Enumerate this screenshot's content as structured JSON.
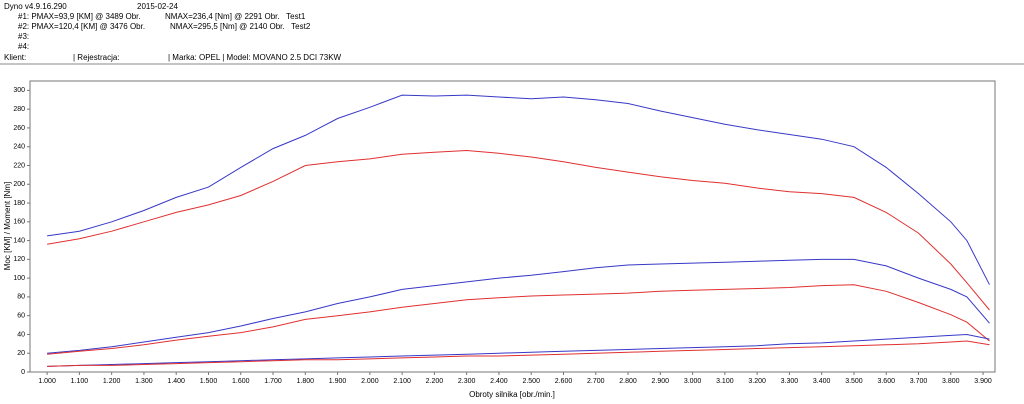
{
  "header": {
    "app": "Dyno v4.9.16.290",
    "date": "2015-02-24",
    "test1_power": "#1: PMAX=93,9 [KM] @ 3489 Obr.",
    "test1_torque": "NMAX=236,4 [Nm] @ 2291 Obr.   Test1",
    "test2_power": "#2: PMAX=120,4 [KM] @ 3476 Obr.",
    "test2_torque": "NMAX=295,5 [Nm] @ 2140 Obr.   Test2",
    "slot3": "#3:",
    "slot4": "#4:",
    "client": "Klient:",
    "registration": "| Rejestracja:",
    "vehicle": "| Marka: OPEL | Model: MOVANO 2.5 DCI 73KW"
  },
  "chart_data": {
    "type": "line",
    "x_label": "Obroty silnika [obr./min.]",
    "y_label": "Moc [KM] / Moment [Nm]",
    "x": [
      1000,
      1100,
      1200,
      1300,
      1400,
      1500,
      1600,
      1700,
      1800,
      1900,
      2000,
      2100,
      2200,
      2300,
      2400,
      2500,
      2600,
      2700,
      2800,
      2900,
      3000,
      3100,
      3200,
      3300,
      3400,
      3500,
      3600,
      3700,
      3800,
      3850,
      3920
    ],
    "series": [
      {
        "color": "#3838c8",
        "values": [
          145,
          150,
          160,
          172,
          186,
          197,
          218,
          238,
          252,
          270,
          282,
          295,
          294,
          295,
          293,
          291,
          293,
          290,
          286,
          278,
          271,
          264,
          258,
          253,
          248,
          240,
          218,
          190,
          160,
          140,
          93
        ]
      },
      {
        "color": "#e03030",
        "values": [
          136,
          142,
          150,
          160,
          170,
          178,
          188,
          203,
          220,
          224,
          227,
          232,
          234,
          236,
          233,
          229,
          224,
          218,
          213,
          208,
          204,
          201,
          196,
          192,
          190,
          186,
          170,
          148,
          115,
          95,
          66
        ]
      },
      {
        "color": "#3838c8",
        "values": [
          20,
          23,
          27,
          32,
          37,
          42,
          49,
          57,
          64,
          73,
          80,
          88,
          92,
          96,
          100,
          103,
          107,
          111,
          114,
          115,
          116,
          117,
          118,
          119,
          120,
          120,
          113,
          100,
          88,
          80,
          52
        ]
      },
      {
        "color": "#e03030",
        "values": [
          19,
          22,
          25,
          29,
          34,
          38,
          42,
          48,
          56,
          60,
          64,
          69,
          73,
          77,
          79,
          81,
          82,
          83,
          84,
          86,
          87,
          88,
          89,
          90,
          92,
          93,
          86,
          74,
          61,
          53,
          33
        ]
      },
      {
        "color": "#3838c8",
        "values": [
          6,
          7,
          8,
          9,
          10,
          11,
          12,
          13,
          14,
          15,
          16,
          17,
          18,
          19,
          20,
          21,
          22,
          23,
          24,
          25,
          26,
          27,
          28,
          30,
          31,
          33,
          35,
          37,
          39,
          40,
          35
        ]
      },
      {
        "color": "#e03030",
        "values": [
          6,
          7,
          7,
          8,
          9,
          10,
          11,
          12,
          13,
          13,
          14,
          15,
          16,
          17,
          17,
          18,
          19,
          20,
          21,
          22,
          23,
          24,
          25,
          26,
          27,
          28,
          29,
          30,
          32,
          33,
          29
        ]
      }
    ],
    "xlim": [
      947,
      3937
    ],
    "ylim": [
      0,
      310
    ],
    "xticks": [
      {
        "value": 1000,
        "label": "1.000"
      },
      {
        "value": 1100,
        "label": "1.100"
      },
      {
        "value": 1200,
        "label": "1.200"
      },
      {
        "value": 1300,
        "label": "1.300"
      },
      {
        "value": 1400,
        "label": "1.400"
      },
      {
        "value": 1500,
        "label": "1.500"
      },
      {
        "value": 1600,
        "label": "1.600"
      },
      {
        "value": 1700,
        "label": "1.700"
      },
      {
        "value": 1800,
        "label": "1.800"
      },
      {
        "value": 1900,
        "label": "1.900"
      },
      {
        "value": 2000,
        "label": "2.000"
      },
      {
        "value": 2100,
        "label": "2.100"
      },
      {
        "value": 2200,
        "label": "2.200"
      },
      {
        "value": 2300,
        "label": "2.300"
      },
      {
        "value": 2400,
        "label": "2.400"
      },
      {
        "value": 2500,
        "label": "2.500"
      },
      {
        "value": 2600,
        "label": "2.600"
      },
      {
        "value": 2700,
        "label": "2.700"
      },
      {
        "value": 2800,
        "label": "2.800"
      },
      {
        "value": 2900,
        "label": "2.900"
      },
      {
        "value": 3000,
        "label": "3.000"
      },
      {
        "value": 3100,
        "label": "3.100"
      },
      {
        "value": 3200,
        "label": "3.200"
      },
      {
        "value": 3300,
        "label": "3.300"
      },
      {
        "value": 3400,
        "label": "3.400"
      },
      {
        "value": 3500,
        "label": "3.500"
      },
      {
        "value": 3600,
        "label": "3.600"
      },
      {
        "value": 3700,
        "label": "3.700"
      },
      {
        "value": 3800,
        "label": "3.800"
      },
      {
        "value": 3900,
        "label": "3.900"
      }
    ],
    "yticks": [
      0,
      20,
      40,
      60,
      80,
      100,
      120,
      140,
      160,
      180,
      200,
      220,
      240,
      260,
      280,
      300
    ]
  }
}
